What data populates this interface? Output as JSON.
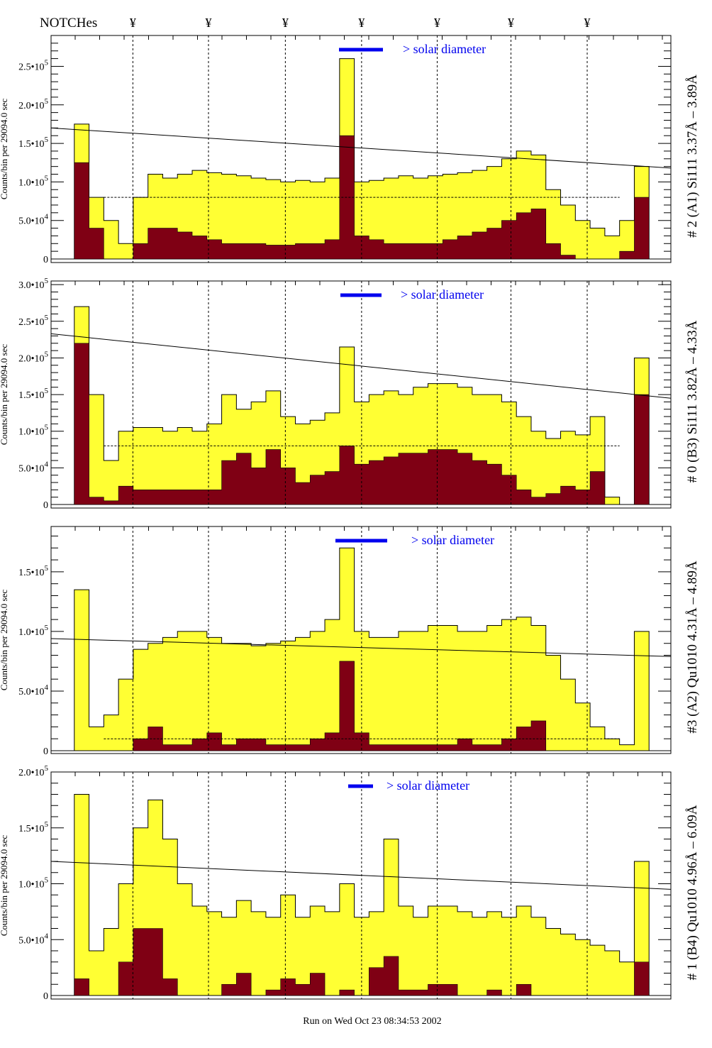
{
  "chart_data": {
    "type": "bar",
    "header": {
      "notches_label": "NOTCHes",
      "notch_symbol": "¥",
      "notch_positions": [
        0.132,
        0.254,
        0.378,
        0.501,
        0.623,
        0.742,
        0.865
      ]
    },
    "ylabel": "Counts/bin per  29094.0 sec",
    "legend": {
      "label": "> solar diameter",
      "color": "#0000ee"
    },
    "footer": "Run on Wed Oct 23 08:34:53 2002",
    "colors": {
      "total": "#ffff33",
      "red": "#7f0014",
      "line": "#000000",
      "legend": "#0000ee"
    },
    "panels": [
      {
        "title": "# 2 (A1) Si111  3.37Å – 3.89Å",
        "ylim": [
          0,
          290000
        ],
        "ticks": [
          {
            "v": 0,
            "m": "0",
            "e": ""
          },
          {
            "v": 50000,
            "m": "5.0•10",
            "e": "4"
          },
          {
            "v": 100000,
            "m": "1.0•10",
            "e": "5"
          },
          {
            "v": 150000,
            "m": "1.5•10",
            "e": "5"
          },
          {
            "v": 200000,
            "m": "2.0•10",
            "e": "5"
          },
          {
            "v": 250000,
            "m": "2.5•10",
            "e": "5"
          }
        ],
        "total": [
          0,
          175,
          80,
          50,
          20,
          80,
          110,
          105,
          110,
          115,
          112,
          110,
          108,
          105,
          103,
          100,
          102,
          100,
          105,
          260,
          100,
          102,
          105,
          108,
          105,
          108,
          110,
          112,
          115,
          120,
          130,
          140,
          135,
          90,
          70,
          50,
          40,
          30,
          50,
          120,
          0
        ],
        "red": [
          0,
          125,
          40,
          0,
          0,
          20,
          40,
          40,
          35,
          30,
          25,
          20,
          20,
          20,
          18,
          18,
          20,
          20,
          25,
          160,
          30,
          25,
          20,
          20,
          20,
          20,
          25,
          30,
          35,
          40,
          50,
          60,
          65,
          20,
          5,
          0,
          0,
          0,
          10,
          80,
          0
        ],
        "line": [
          170000,
          118000
        ],
        "dashed": 80000
      },
      {
        "title": "# 0 (B3) Si111  3.82Å – 4.33Å",
        "ylim": [
          0,
          305000
        ],
        "ticks": [
          {
            "v": 0,
            "m": "0",
            "e": ""
          },
          {
            "v": 50000,
            "m": "5.0•10",
            "e": "4"
          },
          {
            "v": 100000,
            "m": "1.0•10",
            "e": "5"
          },
          {
            "v": 150000,
            "m": "1.5•10",
            "e": "5"
          },
          {
            "v": 200000,
            "m": "2.0•10",
            "e": "5"
          },
          {
            "v": 250000,
            "m": "2.5•10",
            "e": "5"
          },
          {
            "v": 300000,
            "m": "3.0•10",
            "e": "5"
          }
        ],
        "total": [
          0,
          270,
          150,
          60,
          100,
          105,
          105,
          100,
          105,
          100,
          110,
          150,
          130,
          140,
          155,
          120,
          110,
          115,
          125,
          215,
          140,
          150,
          155,
          150,
          160,
          165,
          165,
          160,
          150,
          150,
          140,
          120,
          100,
          90,
          100,
          95,
          120,
          10,
          0,
          200,
          0
        ],
        "red": [
          0,
          220,
          10,
          5,
          25,
          20,
          20,
          20,
          20,
          20,
          20,
          60,
          70,
          50,
          75,
          50,
          30,
          40,
          45,
          80,
          55,
          60,
          65,
          70,
          70,
          75,
          75,
          70,
          60,
          55,
          40,
          20,
          10,
          15,
          25,
          20,
          45,
          0,
          0,
          150,
          0
        ],
        "line": [
          233000,
          145000
        ],
        "dashed": 80000
      },
      {
        "title": "#3 (A2) Qu1010  4.31Å – 4.89Å",
        "ylim": [
          0,
          188000
        ],
        "ticks": [
          {
            "v": 0,
            "m": "0",
            "e": ""
          },
          {
            "v": 50000,
            "m": "5.0•10",
            "e": "4"
          },
          {
            "v": 100000,
            "m": "1.0•10",
            "e": "5"
          },
          {
            "v": 150000,
            "m": "1.5•10",
            "e": "5"
          }
        ],
        "total": [
          0,
          135,
          20,
          30,
          60,
          85,
          90,
          95,
          100,
          100,
          95,
          90,
          90,
          88,
          90,
          92,
          95,
          100,
          110,
          170,
          100,
          95,
          95,
          100,
          100,
          105,
          105,
          100,
          100,
          105,
          110,
          112,
          105,
          80,
          60,
          40,
          20,
          10,
          5,
          100,
          0
        ],
        "red": [
          0,
          0,
          0,
          0,
          0,
          10,
          20,
          5,
          5,
          10,
          15,
          5,
          10,
          10,
          5,
          5,
          5,
          10,
          15,
          75,
          15,
          5,
          5,
          5,
          5,
          5,
          5,
          10,
          5,
          5,
          10,
          20,
          25,
          0,
          0,
          0,
          0,
          0,
          0,
          0,
          0
        ],
        "line": [
          94000,
          79000
        ],
        "dashed": 10000
      },
      {
        "title": "# 1 (B4) Qu1010 4.96Å – 6.09Å",
        "ylim": [
          0,
          200000
        ],
        "ticks": [
          {
            "v": 0,
            "m": "0",
            "e": ""
          },
          {
            "v": 50000,
            "m": "5.0•10",
            "e": "4"
          },
          {
            "v": 100000,
            "m": "1.0•10",
            "e": "5"
          },
          {
            "v": 150000,
            "m": "1.5•10",
            "e": "5"
          },
          {
            "v": 200000,
            "m": "2.0•10",
            "e": "5"
          }
        ],
        "total": [
          0,
          180,
          40,
          60,
          100,
          150,
          175,
          140,
          100,
          80,
          75,
          70,
          85,
          75,
          70,
          90,
          70,
          80,
          75,
          100,
          70,
          75,
          140,
          80,
          70,
          80,
          80,
          75,
          70,
          75,
          70,
          80,
          70,
          60,
          55,
          50,
          45,
          40,
          30,
          120,
          0
        ],
        "red": [
          0,
          15,
          0,
          0,
          30,
          60,
          60,
          15,
          0,
          0,
          0,
          10,
          20,
          0,
          5,
          15,
          10,
          20,
          0,
          5,
          0,
          25,
          35,
          5,
          5,
          10,
          10,
          0,
          0,
          5,
          0,
          10,
          0,
          0,
          0,
          0,
          0,
          0,
          0,
          30,
          0
        ],
        "line": [
          120000,
          95000
        ],
        "dashed": null
      }
    ]
  }
}
